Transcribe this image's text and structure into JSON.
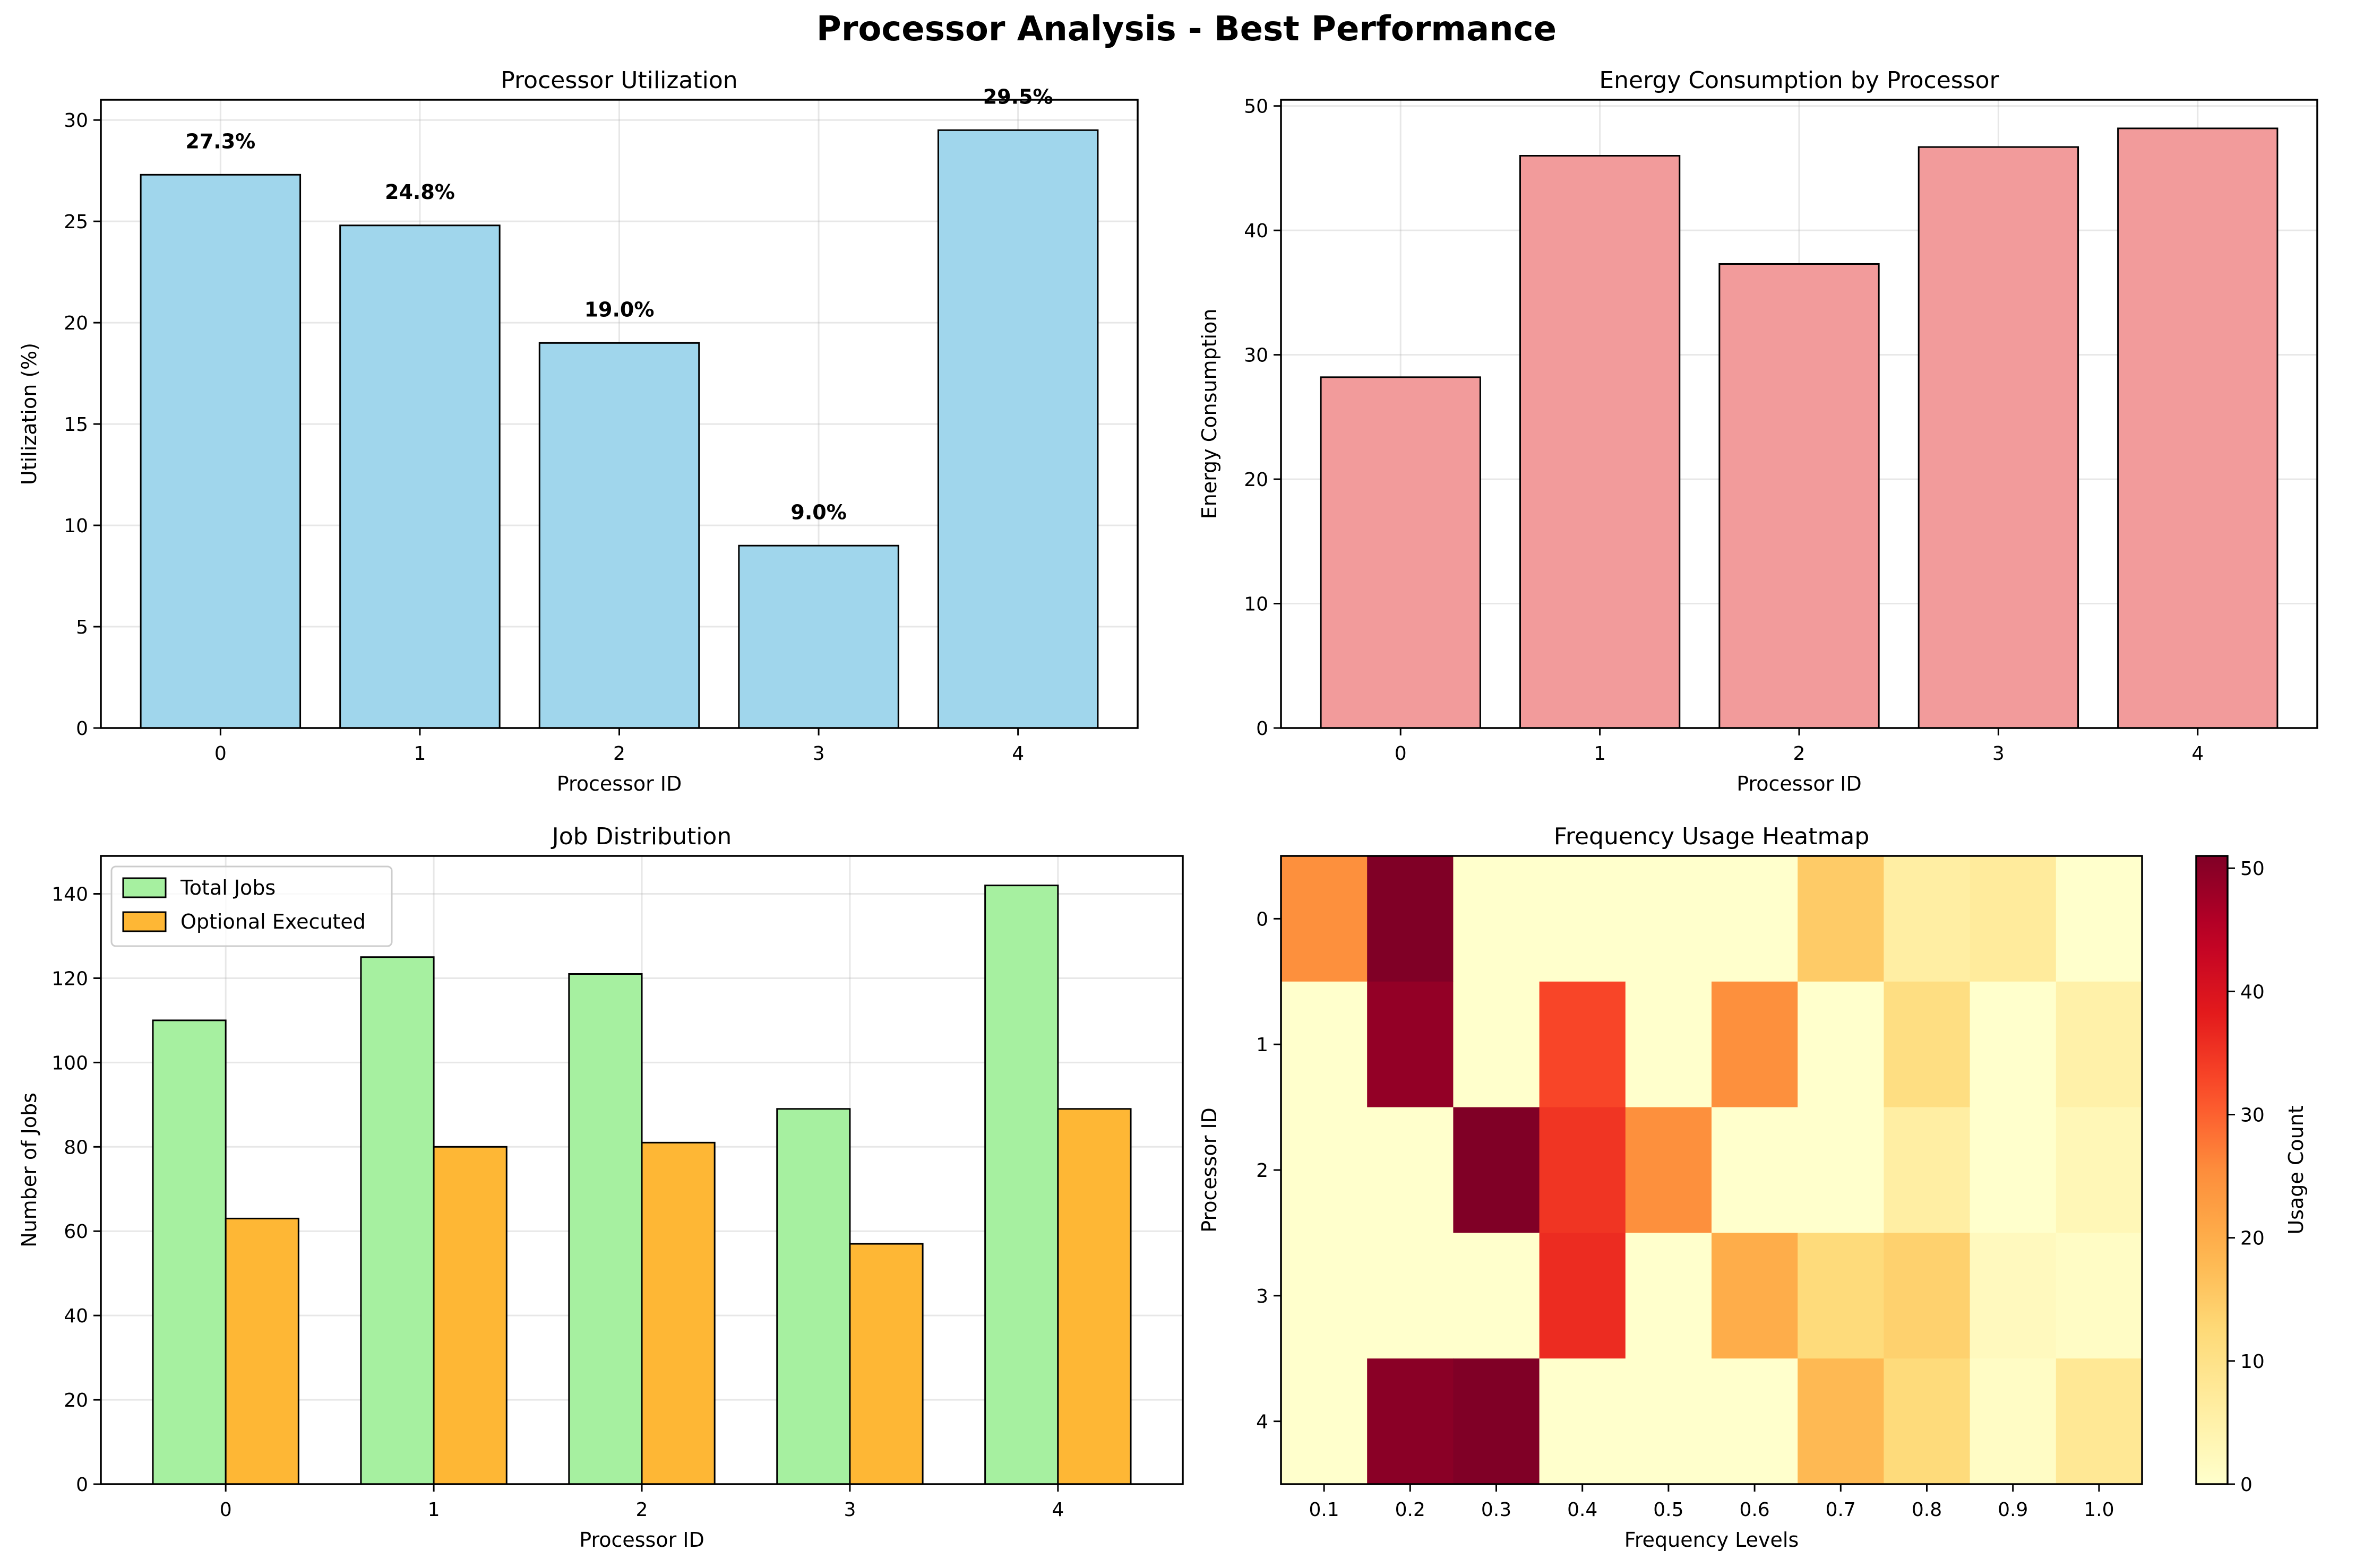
{
  "figure": {
    "title": "Processor Analysis - Best Performance"
  },
  "chart_data": [
    {
      "type": "bar",
      "title": "Processor Utilization",
      "xlabel": "Processor ID",
      "ylabel": "Utilization (%)",
      "categories": [
        "0",
        "1",
        "2",
        "3",
        "4"
      ],
      "values": [
        27.3,
        24.8,
        19.0,
        9.0,
        29.5
      ],
      "data_labels": [
        "27.3%",
        "24.8%",
        "19.0%",
        "9.0%",
        "29.5%"
      ],
      "ylim": [
        0,
        31
      ],
      "yticks": [
        0,
        5,
        10,
        15,
        20,
        25,
        30
      ],
      "color": "#a0d6ec",
      "grid": true
    },
    {
      "type": "bar",
      "title": "Energy Consumption by Processor",
      "xlabel": "Processor ID",
      "ylabel": "Energy Consumption",
      "categories": [
        "0",
        "1",
        "2",
        "3",
        "4"
      ],
      "values": [
        28.2,
        46.0,
        37.3,
        46.7,
        48.2
      ],
      "ylim": [
        0,
        50.5
      ],
      "yticks": [
        0,
        10,
        20,
        30,
        40,
        50
      ],
      "color": "#f29b9b",
      "grid": true
    },
    {
      "type": "bar",
      "title": "Job Distribution",
      "xlabel": "Processor ID",
      "ylabel": "Number of Jobs",
      "categories": [
        "0",
        "1",
        "2",
        "3",
        "4"
      ],
      "series": [
        {
          "name": "Total Jobs",
          "values": [
            110,
            125,
            121,
            89,
            142
          ],
          "color": "#a6f0a0"
        },
        {
          "name": "Optional Executed",
          "values": [
            63,
            80,
            81,
            57,
            89
          ],
          "color": "#feb735"
        }
      ],
      "ylim": [
        0,
        149
      ],
      "yticks": [
        0,
        20,
        40,
        60,
        80,
        100,
        120,
        140
      ],
      "legend": "top-left",
      "grid": true
    },
    {
      "type": "heatmap",
      "title": "Frequency Usage Heatmap",
      "xlabel": "Frequency Levels",
      "ylabel": "Processor ID",
      "x_categories": [
        "0.1",
        "0.2",
        "0.3",
        "0.4",
        "0.5",
        "0.6",
        "0.7",
        "0.8",
        "0.9",
        "1.0"
      ],
      "y_categories": [
        "0",
        "1",
        "2",
        "3",
        "4"
      ],
      "values": [
        [
          25,
          51,
          0,
          0,
          0,
          0,
          15,
          6,
          7,
          0
        ],
        [
          0,
          49,
          0,
          33,
          0,
          25,
          0,
          11,
          0,
          5
        ],
        [
          0,
          0,
          51,
          35,
          25,
          0,
          0,
          6,
          0,
          3
        ],
        [
          0,
          0,
          0,
          36,
          0,
          20,
          12,
          14,
          2,
          1
        ],
        [
          0,
          50,
          53,
          0,
          0,
          0,
          18,
          12,
          1,
          8
        ]
      ],
      "colorbar": {
        "label": "Usage Count",
        "range": [
          0,
          51
        ],
        "ticks": [
          0,
          10,
          20,
          30,
          40,
          50
        ],
        "colormap": "YlOrRd"
      }
    }
  ]
}
